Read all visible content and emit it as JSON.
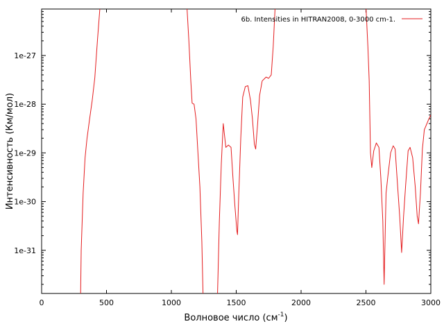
{
  "chart_data": {
    "type": "line",
    "xlabel": "Волновое число (см",
    "xlabel_sup": "-1",
    "xlabel_end": ")",
    "ylabel": "Интенсивность (Км/мол)",
    "y_scale": "log",
    "xlim": [
      0,
      3000
    ],
    "ylim": [
      1.3e-32,
      9e-27
    ],
    "x_ticks": [
      0,
      500,
      1000,
      1500,
      2000,
      2500,
      3000
    ],
    "x_tick_labels": [
      "0",
      "500",
      "1000",
      "1500",
      "2000",
      "2500",
      "3000"
    ],
    "y_ticks": [
      1e-31,
      1e-30,
      1e-29,
      1e-28,
      1e-27
    ],
    "y_tick_labels": [
      "1e-31",
      "1e-30",
      "1e-29",
      "1e-28",
      "1e-27"
    ],
    "grid": false,
    "legend_position": "top-right",
    "colors": {
      "series": "#e41a1c",
      "axis": "#000000"
    },
    "series": [
      {
        "name": "6b. Intensities in HITRAN2008, 0-3000 cm-1.",
        "points": [
          [
            300,
            1e-32
          ],
          [
            305,
            1e-31
          ],
          [
            320,
            1.5e-30
          ],
          [
            335,
            8e-30
          ],
          [
            350,
            2e-29
          ],
          [
            370,
            5e-29
          ],
          [
            390,
            1.2e-28
          ],
          [
            410,
            3.5e-28
          ],
          [
            430,
            2e-27
          ],
          [
            450,
            1e-26
          ],
          [
            1120,
            1e-26
          ],
          [
            1135,
            2e-27
          ],
          [
            1150,
            3e-28
          ],
          [
            1160,
            1.05e-28
          ],
          [
            1175,
            1e-28
          ],
          [
            1190,
            5e-29
          ],
          [
            1205,
            1e-29
          ],
          [
            1220,
            2e-30
          ],
          [
            1235,
            1.5e-31
          ],
          [
            1245,
            1e-32
          ],
          [
            1355,
            1e-32
          ],
          [
            1370,
            4e-31
          ],
          [
            1385,
            6e-30
          ],
          [
            1400,
            4e-29
          ],
          [
            1420,
            1.3e-29
          ],
          [
            1440,
            1.45e-29
          ],
          [
            1460,
            1.3e-29
          ],
          [
            1475,
            3e-30
          ],
          [
            1490,
            8e-31
          ],
          [
            1505,
            2.5e-31
          ],
          [
            1510,
            2.1e-31
          ],
          [
            1520,
            1.5e-30
          ],
          [
            1535,
            2e-29
          ],
          [
            1550,
            1.4e-28
          ],
          [
            1570,
            2.3e-28
          ],
          [
            1590,
            2.4e-28
          ],
          [
            1610,
            1.2e-28
          ],
          [
            1625,
            5e-29
          ],
          [
            1640,
            1.5e-29
          ],
          [
            1650,
            1.2e-29
          ],
          [
            1665,
            4e-29
          ],
          [
            1680,
            1.5e-28
          ],
          [
            1700,
            3e-28
          ],
          [
            1730,
            3.6e-28
          ],
          [
            1750,
            3.4e-28
          ],
          [
            1770,
            4e-28
          ],
          [
            1785,
            1.5e-27
          ],
          [
            1800,
            1e-26
          ],
          [
            2500,
            1e-26
          ],
          [
            2515,
            1.5e-27
          ],
          [
            2525,
            3e-28
          ],
          [
            2535,
            1e-29
          ],
          [
            2545,
            5e-30
          ],
          [
            2560,
            1.1e-29
          ],
          [
            2580,
            1.6e-29
          ],
          [
            2600,
            1.3e-29
          ],
          [
            2615,
            3e-30
          ],
          [
            2630,
            4e-31
          ],
          [
            2640,
            2e-32
          ],
          [
            2655,
            1.5e-30
          ],
          [
            2670,
            3.5e-30
          ],
          [
            2690,
            1e-29
          ],
          [
            2710,
            1.4e-29
          ],
          [
            2725,
            1.2e-29
          ],
          [
            2740,
            3e-30
          ],
          [
            2760,
            5e-31
          ],
          [
            2775,
            9e-32
          ],
          [
            2790,
            5e-31
          ],
          [
            2805,
            2e-30
          ],
          [
            2825,
            1.1e-29
          ],
          [
            2840,
            1.3e-29
          ],
          [
            2860,
            8e-30
          ],
          [
            2880,
            2e-30
          ],
          [
            2895,
            5e-31
          ],
          [
            2905,
            3.5e-31
          ],
          [
            2920,
            1.5e-30
          ],
          [
            2935,
            1.2e-29
          ],
          [
            2950,
            3e-29
          ],
          [
            2970,
            4e-29
          ],
          [
            2985,
            5e-29
          ],
          [
            3000,
            6e-29
          ]
        ]
      }
    ]
  }
}
